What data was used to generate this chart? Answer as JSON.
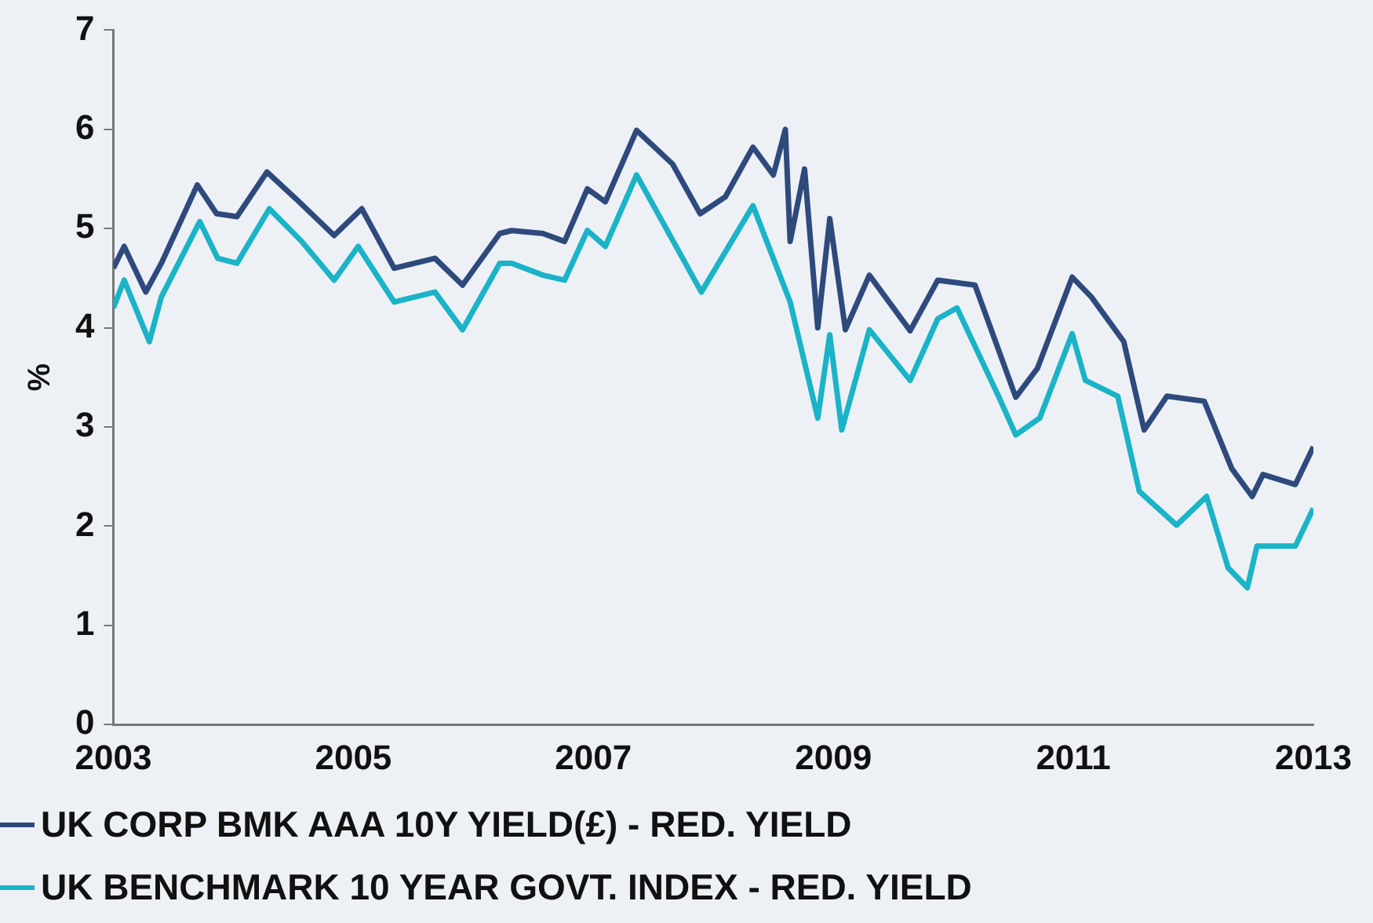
{
  "chart_data": {
    "type": "line",
    "ylabel": "%",
    "xlim": [
      2003,
      2013
    ],
    "xticks": [
      2003,
      2005,
      2007,
      2009,
      2011,
      2013
    ],
    "ylim": [
      0,
      7
    ],
    "yticks": [
      0,
      1,
      2,
      3,
      4,
      5,
      6,
      7
    ],
    "grid": false,
    "legend": "bottom",
    "marker": "none",
    "line_style": "solid",
    "series": [
      {
        "name": "UK CORP BMK AAA 10Y YIELD(£) - RED. YIELD",
        "color": "#2e4a7d",
        "x": [
          2003.0,
          2003.09,
          2003.27,
          2003.4,
          2003.7,
          2003.86,
          2004.03,
          2004.28,
          2004.53,
          2004.84,
          2005.07,
          2005.34,
          2005.68,
          2005.91,
          2006.22,
          2006.32,
          2006.58,
          2006.76,
          2006.95,
          2007.1,
          2007.36,
          2007.66,
          2007.89,
          2008.1,
          2008.33,
          2008.5,
          2008.6,
          2008.64,
          2008.76,
          2008.87,
          2008.97,
          2009.1,
          2009.3,
          2009.64,
          2009.87,
          2010.18,
          2010.52,
          2010.7,
          2010.99,
          2011.15,
          2011.42,
          2011.59,
          2011.78,
          2012.09,
          2012.32,
          2012.49,
          2012.58,
          2012.85,
          2013.0
        ],
        "values": [
          4.6,
          4.82,
          4.36,
          4.65,
          5.44,
          5.15,
          5.12,
          5.57,
          5.29,
          4.93,
          5.2,
          4.6,
          4.7,
          4.43,
          4.95,
          4.98,
          4.95,
          4.87,
          5.4,
          5.27,
          5.99,
          5.65,
          5.15,
          5.32,
          5.82,
          5.54,
          6.0,
          4.87,
          5.6,
          4.0,
          5.1,
          3.98,
          4.53,
          3.97,
          4.48,
          4.43,
          3.3,
          3.59,
          4.51,
          4.31,
          3.86,
          2.97,
          3.31,
          3.26,
          2.58,
          2.3,
          2.52,
          2.42,
          2.8
        ]
      },
      {
        "name": "UK BENCHMARK 10 YEAR GOVT. INDEX - RED. YIELD",
        "color": "#1bb3c8",
        "x": [
          2003.0,
          2003.09,
          2003.3,
          2003.4,
          2003.72,
          2003.87,
          2004.03,
          2004.3,
          2004.57,
          2004.84,
          2005.04,
          2005.34,
          2005.68,
          2005.91,
          2006.22,
          2006.32,
          2006.58,
          2006.76,
          2006.95,
          2007.1,
          2007.36,
          2007.9,
          2008.33,
          2008.64,
          2008.87,
          2008.97,
          2009.07,
          2009.3,
          2009.64,
          2009.87,
          2010.03,
          2010.38,
          2010.52,
          2010.72,
          2010.99,
          2011.1,
          2011.37,
          2011.55,
          2011.86,
          2012.11,
          2012.29,
          2012.45,
          2012.53,
          2012.85,
          2013.0
        ],
        "values": [
          4.2,
          4.48,
          3.86,
          4.31,
          5.07,
          4.7,
          4.65,
          5.2,
          4.87,
          4.48,
          4.82,
          4.26,
          4.36,
          3.98,
          4.65,
          4.65,
          4.53,
          4.48,
          4.98,
          4.82,
          5.54,
          4.36,
          5.23,
          4.26,
          3.09,
          3.93,
          2.97,
          3.98,
          3.47,
          4.09,
          4.2,
          3.3,
          2.92,
          3.09,
          3.94,
          3.47,
          3.31,
          2.35,
          2.01,
          2.3,
          1.58,
          1.38,
          1.8,
          1.8,
          2.18
        ]
      }
    ]
  }
}
